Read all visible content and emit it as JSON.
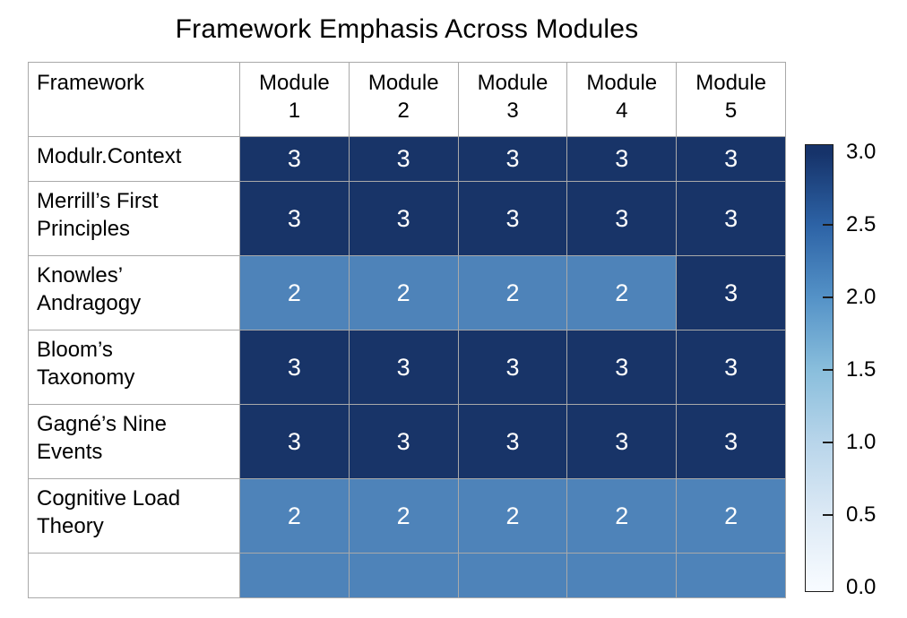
{
  "title": "Framework Emphasis Across Modules",
  "table": {
    "header": [
      "Framework",
      "Module\n1",
      "Module\n2",
      "Module\n3",
      "Module\n4",
      "Module\n5"
    ],
    "rows": [
      {
        "label": "Modulr.Context",
        "values": [
          "3",
          "3",
          "3",
          "3",
          "3"
        ]
      },
      {
        "label": "Merrill’s First\nPrinciples",
        "values": [
          "3",
          "3",
          "3",
          "3",
          "3"
        ]
      },
      {
        "label": "Knowles’\nAndragogy",
        "values": [
          "2",
          "2",
          "2",
          "2",
          "3"
        ]
      },
      {
        "label": "Bloom’s\nTaxonomy",
        "values": [
          "3",
          "3",
          "3",
          "3",
          "3"
        ]
      },
      {
        "label": "Gagné’s Nine\nEvents",
        "values": [
          "3",
          "3",
          "3",
          "3",
          "3"
        ]
      },
      {
        "label": "Cognitive Load\nTheory",
        "values": [
          "2",
          "2",
          "2",
          "2",
          "2"
        ]
      },
      {
        "label": "",
        "values": [
          "",
          "",
          "",
          "",
          ""
        ],
        "fill_value": "2"
      }
    ]
  },
  "colors": {
    "value_3": "#183468",
    "value_2": "#4e83b9",
    "grid": "#a9a9a9",
    "cell_text": "#ffffff",
    "text": "#000000"
  },
  "colorbar": {
    "min": 0,
    "max": 3,
    "tick_labels": [
      "3.0",
      "2.5",
      "2.0",
      "1.5",
      "1.0",
      "0.5",
      "0.0"
    ],
    "gradient": [
      "#f7fbff",
      "#dce9f5",
      "#b8d5ea",
      "#89bedc",
      "#5492c7",
      "#2d63a6",
      "#16336a"
    ]
  },
  "chart_data": {
    "type": "heatmap",
    "title": "Framework Emphasis Across Modules",
    "columns": [
      "Module 1",
      "Module 2",
      "Module 3",
      "Module 4",
      "Module 5"
    ],
    "rows": [
      "Modulr.Context",
      "Merrill’s First Principles",
      "Knowles’ Andragogy",
      "Bloom’s Taxonomy",
      "Gagné’s Nine Events",
      "Cognitive Load Theory"
    ],
    "values": [
      [
        3,
        3,
        3,
        3,
        3
      ],
      [
        3,
        3,
        3,
        3,
        3
      ],
      [
        2,
        2,
        2,
        2,
        3
      ],
      [
        3,
        3,
        3,
        3,
        3
      ],
      [
        3,
        3,
        3,
        3,
        3
      ],
      [
        2,
        2,
        2,
        2,
        2
      ]
    ],
    "colorbar_range": [
      0,
      3
    ],
    "colorbar_ticks": [
      3.0,
      2.5,
      2.0,
      1.5,
      1.0,
      0.5,
      0.0
    ],
    "legend_position": "right",
    "grid": true
  }
}
